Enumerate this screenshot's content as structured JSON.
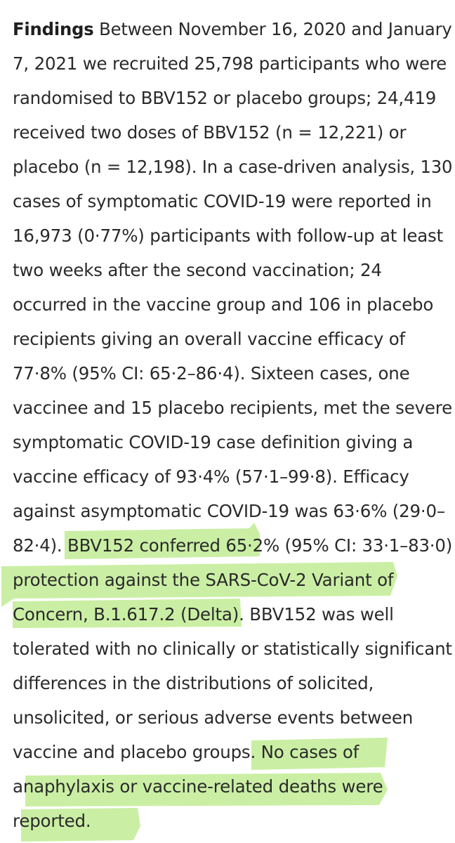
{
  "paragraph": {
    "heading": "Findings",
    "lines": [
      " Between November 16, 2020 and January",
      "7, 2021 we recruited 25,798 participants who were",
      "randomised to BBV152 or placebo groups; 24,419",
      "received two doses of BBV152 (n = 12,221) or",
      "placebo (n = 12,198). In a case-driven analysis, 130",
      "cases of symptomatic COVID-19 were reported in",
      "16,973 (0·77%) participants with follow-up at least",
      "two weeks after the second vaccination; 24",
      "occurred in the vaccine group and 106 in placebo",
      "recipients giving an overall vaccine efficacy of",
      "77·8% (95% CI: 65·2–86·4). Sixteen cases, one",
      "vaccinee and 15 placebo recipients, met the severe",
      "symptomatic COVID-19 case definition giving a",
      "vaccine efficacy of 93·4% (57·1–99·8). Efficacy",
      "against asymptomatic COVID-19 was 63·6% (29·0–",
      "82·4). BBV152 conferred 65·2% (95% CI: 33·1–83·0)",
      "protection against the SARS-CoV-2 Variant of",
      "Concern, B.1.617.2 (Delta). BBV152 was well",
      "tolerated with no clinically or statistically significant",
      "differences in the distributions of solicited,",
      "unsolicited, or serious adverse events between",
      "vaccine and placebo groups. No cases of",
      "anaphylaxis or vaccine-related deaths were",
      "reported."
    ]
  },
  "highlight_color": "#b8e986"
}
